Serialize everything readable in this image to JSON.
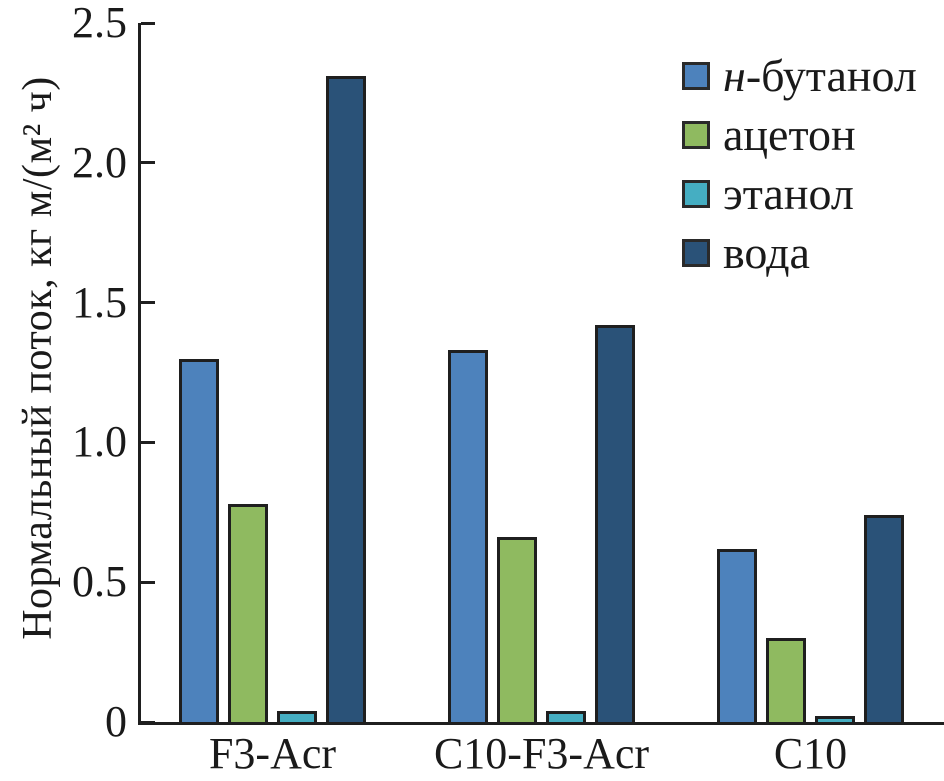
{
  "chart_data": {
    "type": "bar",
    "title": "",
    "xlabel": "",
    "ylabel": "Нормальный поток, кг м/(м² ч)",
    "ylim": [
      0,
      2.5
    ],
    "ytick_labels": [
      "0",
      "0.5",
      "1.0",
      "1.5",
      "2.0",
      "2.5"
    ],
    "ytick_values": [
      0,
      0.5,
      1.0,
      1.5,
      2.0,
      2.5
    ],
    "grid": false,
    "legend_position": "top-right",
    "categories": [
      "F3-Acr",
      "C10-F3-Acr",
      "C10"
    ],
    "series": [
      {
        "name": "н-бутанол",
        "name_parts": [
          {
            "text": "н",
            "italic": true
          },
          {
            "text": "-бутанол",
            "italic": false
          }
        ],
        "color": "#4d82bc",
        "values": [
          1.3,
          1.33,
          0.62
        ]
      },
      {
        "name": "ацетон",
        "name_parts": [
          {
            "text": "ацетон",
            "italic": false
          }
        ],
        "color": "#8fba60",
        "values": [
          0.78,
          0.66,
          0.3
        ]
      },
      {
        "name": "этанол",
        "name_parts": [
          {
            "text": "этанол",
            "italic": false
          }
        ],
        "color": "#45aec2",
        "values": [
          0.04,
          0.04,
          0.02
        ]
      },
      {
        "name": "вода",
        "name_parts": [
          {
            "text": "вода",
            "italic": false
          }
        ],
        "color": "#2a5278",
        "values": [
          2.31,
          1.42,
          0.74
        ]
      }
    ],
    "style": {
      "axis_color": "#1f1f1f",
      "bar_outline_color": "#1f1f1f",
      "text_color": "#1a1a1a",
      "background": "#ffffff"
    }
  }
}
